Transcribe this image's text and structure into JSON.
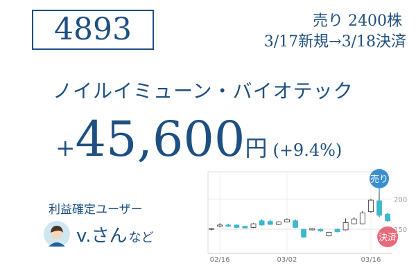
{
  "code": "4893",
  "trade": {
    "side": "売り 2400株",
    "period": "3/17新規→3/18決済"
  },
  "company": "ノイルイミューン・バイオテック",
  "profit": {
    "sign": "+",
    "amount": "45,600",
    "unit": "円",
    "rate": "(+9.4%)"
  },
  "users": {
    "heading": "利益確定ユーザー",
    "name": "v.さん",
    "suffix": "など"
  },
  "chart_data": {
    "type": "candlestick",
    "categories": [
      null,
      "02/16",
      null,
      null,
      null,
      null,
      null,
      null,
      null,
      "03/02",
      null,
      null,
      null,
      null,
      null,
      null,
      null,
      null,
      null,
      "03/16",
      null,
      null
    ],
    "open": [
      150,
      155,
      157,
      157,
      155,
      153,
      164,
      163,
      158,
      162,
      164,
      150,
      149,
      150,
      139,
      150,
      149,
      159,
      159,
      179,
      197,
      175
    ],
    "high": [
      152,
      160,
      159,
      158,
      156,
      160,
      166,
      165,
      163,
      168,
      166,
      151,
      152,
      151,
      146,
      151,
      168,
      170,
      180,
      200,
      210,
      177
    ],
    "low": [
      148,
      153,
      154,
      152,
      151,
      152,
      156,
      157,
      157,
      161,
      152,
      136,
      148,
      146,
      138,
      145,
      148,
      158,
      158,
      177,
      170,
      162
    ],
    "close": [
      151,
      157,
      155,
      153,
      152,
      159,
      157,
      158,
      162,
      166,
      153,
      137,
      151,
      147,
      145,
      146,
      161,
      167,
      177,
      198,
      173,
      164
    ],
    "up_color": "#ffffff",
    "down_color": "#3cb7d0",
    "outline_color": "#333333",
    "ylim": [
      110,
      245
    ],
    "yticks": [
      150,
      200
    ],
    "grid": true,
    "annotations": [
      "売り",
      "決済"
    ]
  }
}
